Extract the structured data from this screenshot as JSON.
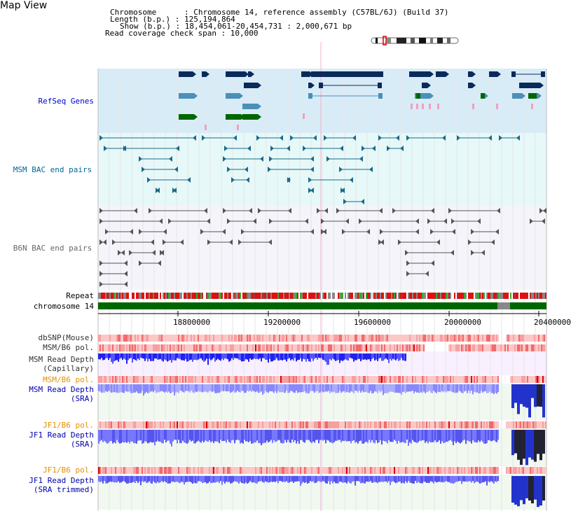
{
  "header": {
    "title": "Map View",
    "info_lines": [
      "Chromosome      : Chromosome 14, reference assembly (C57BL/6J) (Build 37)",
      "Length (b.p.) : 125,194,864",
      "Show (b.p.) : 18,454,061-20,454,731 : 2,000,671 bp",
      "Read coverage check span : 10,000"
    ]
  },
  "tracks": {
    "refseq": "RefSeq Genes",
    "msm_bac": "MSM BAC end pairs",
    "b6n_bac": "B6N BAC end pairs",
    "repeat": "Repeat",
    "chromosome": "chromosome 14",
    "dbsnp": "dbSNP(Mouse)",
    "msm_pol": "MSM/B6 pol.",
    "msm_depth_cap_1": "MSM Read Depth",
    "msm_depth_cap_2": "(Capillary)",
    "msm_pol2": "MSM/B6 pol.",
    "msm_depth_sra_1": "MSM Read Depth",
    "msm_depth_sra_2": "(SRA)",
    "jf1_pol": "JF1/B6 pol.",
    "jf1_depth_1": "JF1 Read Depth",
    "jf1_depth_2": "(SRA)",
    "jf1_pol2": "JF1/B6 pol.",
    "jf1_trim_1": "JF1 Read Depth",
    "jf1_trim_2": "(SRA trimmed)"
  },
  "axis": {
    "ticks": [
      "18800000",
      "19200000",
      "19600000",
      "20000000",
      "20400000"
    ]
  },
  "colors": {
    "refseq_bg": "#d8ecf8",
    "msm_bac_bg": "#e6f8f8",
    "b6n_bac_bg": "#f4f4fa",
    "refseq_label": "#0000cc",
    "msm_label": "#006699",
    "b6n_label": "#666666",
    "jf1_pol_label": "#e39000",
    "depth_label": "#0000aa"
  }
}
